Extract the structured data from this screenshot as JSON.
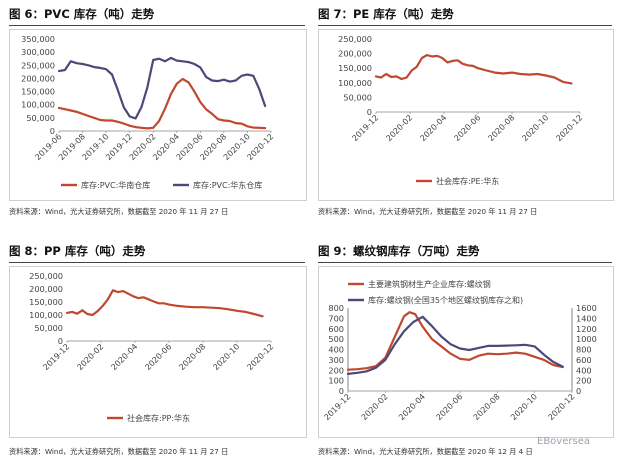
{
  "charts": [
    {
      "title": "图 6：PVC 库存（吨）走势",
      "source": "资料来源：Wind，光大证券研究所，数据截至 2020 年 11 月 27 日"
    },
    {
      "title": "图 7：PE 库存（吨）走势",
      "source": "资料来源：Wind，光大证券研究所，数据截至 2020 年 11 月 27 日"
    },
    {
      "title": "图 8：PP 库存（吨）走势",
      "source": "资料来源：Wind，光大证券研究所，数据截至 2020 年 11 月 27 日"
    },
    {
      "title": "图 9：螺纹钢库存（万吨）走势",
      "source": "资料来源：Wind，光大证券研究所，数据截至 2020 年 12 月 4 日"
    }
  ],
  "watermark": "EBoversea",
  "colors": {
    "red": "#c0482e",
    "navy": "#4a4a7a",
    "axis": "#444444"
  },
  "chart_data": [
    {
      "type": "line",
      "title": "图 6：PVC 库存（吨）走势",
      "x_ticks": [
        "2019-06",
        "2019-08",
        "2019-10",
        "2019-12",
        "2020-02",
        "2020-04",
        "2020-06",
        "2020-08",
        "2020-10",
        "2020-12"
      ],
      "x_range": [
        0,
        18
      ],
      "ylim": [
        0,
        350000
      ],
      "y_ticks": [
        "0",
        "50,000",
        "100,000",
        "150,000",
        "200,000",
        "250,000",
        "300,000",
        "350,000"
      ],
      "y_tick_values": [
        0,
        50000,
        100000,
        150000,
        200000,
        250000,
        300000,
        350000
      ],
      "legend": "bottom",
      "series": [
        {
          "name": "库存:PVC:华南仓库",
          "color": "#c0482e",
          "x": [
            0,
            0.5,
            1,
            1.5,
            2,
            2.5,
            3,
            3.5,
            4,
            4.5,
            5,
            5.5,
            6,
            6.5,
            7,
            7.5,
            8,
            8.5,
            9,
            9.5,
            10,
            10.5,
            11,
            11.5,
            12,
            12.5,
            13,
            13.5,
            14,
            14.5,
            15,
            15.5,
            16,
            16.5,
            17,
            17.5
          ],
          "y": [
            88000,
            83000,
            78000,
            73000,
            65000,
            57000,
            50000,
            42000,
            40000,
            40000,
            35000,
            28000,
            20000,
            15000,
            12000,
            10000,
            12000,
            38000,
            85000,
            140000,
            180000,
            198000,
            185000,
            150000,
            110000,
            82000,
            65000,
            45000,
            40000,
            38000,
            30000,
            28000,
            18000,
            13000,
            12000,
            11000
          ]
        },
        {
          "name": "库存:PVC:华东仓库",
          "color": "#4a4a7a",
          "x": [
            0,
            0.5,
            1,
            1.5,
            2,
            2.5,
            3,
            3.5,
            4,
            4.5,
            5,
            5.5,
            6,
            6.5,
            7,
            7.5,
            8,
            8.5,
            9,
            9.5,
            10,
            10.5,
            11,
            11.5,
            12,
            12.5,
            13,
            13.5,
            14,
            14.5,
            15,
            15.5,
            16,
            16.5,
            17,
            17.5
          ],
          "y": [
            228000,
            232000,
            265000,
            258000,
            255000,
            250000,
            243000,
            240000,
            235000,
            215000,
            155000,
            90000,
            55000,
            48000,
            90000,
            165000,
            270000,
            275000,
            265000,
            278000,
            268000,
            265000,
            262000,
            255000,
            242000,
            205000,
            192000,
            190000,
            195000,
            188000,
            192000,
            210000,
            215000,
            210000,
            160000,
            95000
          ]
        }
      ]
    },
    {
      "type": "line",
      "title": "图 7：PE 库存（吨）走势",
      "x_ticks": [
        "2019-12",
        "2020-02",
        "2020-04",
        "2020-06",
        "2020-08",
        "2020-10",
        "2020-12"
      ],
      "x_range": [
        0,
        12
      ],
      "ylim": [
        0,
        250000
      ],
      "y_ticks": [
        "0",
        "50,000",
        "100,000",
        "150,000",
        "200,000",
        "250,000"
      ],
      "y_tick_values": [
        0,
        50000,
        100000,
        150000,
        200000,
        250000
      ],
      "legend": "bottom",
      "series": [
        {
          "name": "社会库存:PE:华东",
          "color": "#c0482e",
          "x": [
            0,
            0.3,
            0.6,
            0.9,
            1.2,
            1.5,
            1.8,
            2.1,
            2.4,
            2.7,
            3.0,
            3.3,
            3.6,
            3.9,
            4.2,
            4.5,
            4.8,
            5.1,
            5.4,
            5.7,
            6,
            6.5,
            7,
            7.5,
            8,
            8.5,
            9,
            9.5,
            10,
            10.5,
            11,
            11.5
          ],
          "y": [
            122000,
            118000,
            130000,
            120000,
            122000,
            113000,
            118000,
            142000,
            155000,
            185000,
            195000,
            190000,
            192000,
            185000,
            170000,
            175000,
            177000,
            165000,
            160000,
            158000,
            150000,
            142000,
            135000,
            132000,
            135000,
            130000,
            128000,
            130000,
            125000,
            118000,
            103000,
            98000
          ]
        }
      ]
    },
    {
      "type": "line",
      "title": "图 8：PP 库存（吨）走势",
      "x_ticks": [
        "2019-12",
        "2020-02",
        "2020-04",
        "2020-06",
        "2020-08",
        "2020-10",
        "2020-12"
      ],
      "x_range": [
        0,
        12
      ],
      "ylim": [
        0,
        250000
      ],
      "y_ticks": [
        "0",
        "50,000",
        "100,000",
        "150,000",
        "200,000",
        "250,000"
      ],
      "y_tick_values": [
        0,
        50000,
        100000,
        150000,
        200000,
        250000
      ],
      "legend": "bottom",
      "series": [
        {
          "name": "社会库存:PP:华东",
          "color": "#c0482e",
          "x": [
            0,
            0.3,
            0.6,
            0.9,
            1.2,
            1.5,
            1.8,
            2.1,
            2.4,
            2.7,
            3.0,
            3.3,
            3.6,
            3.9,
            4.2,
            4.5,
            4.8,
            5.1,
            5.4,
            5.7,
            6,
            6.5,
            7,
            7.5,
            8,
            8.5,
            9,
            9.5,
            10,
            10.5,
            11,
            11.5
          ],
          "y": [
            108000,
            112000,
            105000,
            118000,
            104000,
            100000,
            115000,
            135000,
            160000,
            195000,
            188000,
            192000,
            182000,
            172000,
            165000,
            168000,
            160000,
            152000,
            145000,
            145000,
            140000,
            135000,
            132000,
            130000,
            130000,
            128000,
            126000,
            122000,
            116000,
            112000,
            104000,
            95000
          ]
        }
      ]
    },
    {
      "type": "line",
      "title": "图 9：螺纹钢库存（万吨）走势",
      "x_ticks": [
        "2019-12",
        "2020-02",
        "2020-04",
        "2020-06",
        "2020-08",
        "2020-10",
        "2020-12"
      ],
      "x_range": [
        0,
        12
      ],
      "ylim": [
        0,
        800
      ],
      "y_ticks": [
        "0",
        "100",
        "200",
        "300",
        "400",
        "500",
        "600",
        "700",
        "800"
      ],
      "y_tick_values": [
        0,
        100,
        200,
        300,
        400,
        500,
        600,
        700,
        800
      ],
      "y2lim": [
        0,
        1600
      ],
      "y2_ticks": [
        "0",
        "200",
        "400",
        "600",
        "800",
        "1000",
        "1200",
        "1400",
        "1600"
      ],
      "y2_tick_values": [
        0,
        200,
        400,
        600,
        800,
        1000,
        1200,
        1400,
        1600
      ],
      "legend": "top-left",
      "series": [
        {
          "name": "主要建筑钢材生产企业库存:螺纹钢",
          "color": "#c0482e",
          "axis": "left",
          "x": [
            0,
            0.5,
            1,
            1.5,
            2,
            2.5,
            3,
            3.3,
            3.6,
            4,
            4.5,
            5,
            5.5,
            6,
            6.5,
            7,
            7.5,
            8,
            8.5,
            9,
            9.5,
            10,
            10.5,
            11,
            11.5
          ],
          "y": [
            205,
            210,
            220,
            240,
            320,
            520,
            720,
            760,
            740,
            620,
            500,
            430,
            360,
            310,
            300,
            340,
            360,
            355,
            360,
            370,
            360,
            330,
            300,
            250,
            230
          ]
        },
        {
          "name": "库存:螺纹钢(全国35个地区螺纹钢库存之和)",
          "color": "#4a4a7a",
          "axis": "right",
          "x": [
            0,
            0.5,
            1,
            1.5,
            2,
            2.5,
            3,
            3.5,
            4,
            4.5,
            5,
            5.5,
            6,
            6.5,
            7,
            7.5,
            8,
            8.5,
            9,
            9.5,
            10,
            10.5,
            11,
            11.5
          ],
          "y": [
            330,
            350,
            380,
            450,
            600,
            900,
            1150,
            1330,
            1430,
            1250,
            1050,
            900,
            820,
            790,
            830,
            870,
            870,
            875,
            880,
            890,
            860,
            700,
            560,
            470
          ]
        }
      ]
    }
  ]
}
